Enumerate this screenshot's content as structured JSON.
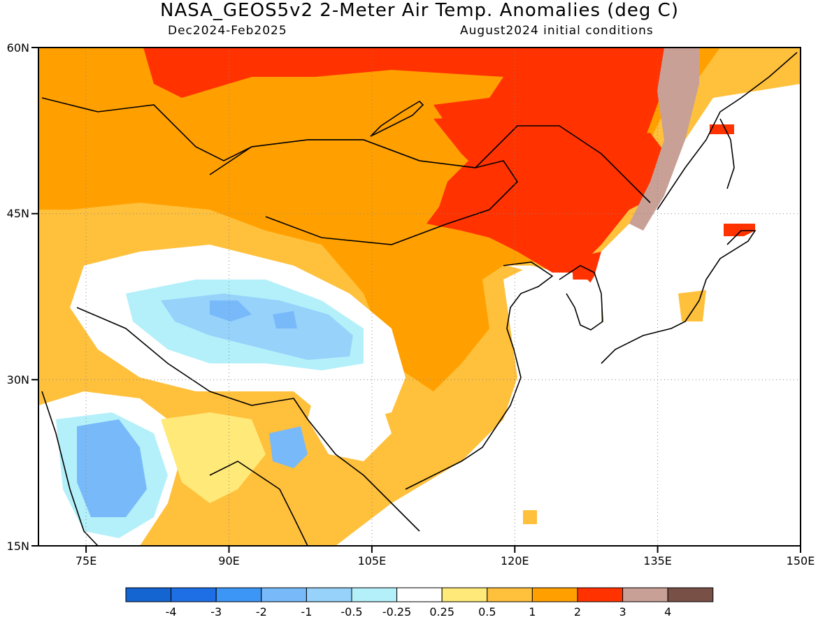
{
  "header": {
    "title": "NASA_GEOS5v2 2-Meter Air Temp. Anomalies (deg C)",
    "subtitle_left": "Dec2024-Feb2025",
    "subtitle_right": "August2024 initial conditions"
  },
  "map": {
    "projection": "cylindrical-equidistant",
    "lon_range": [
      70,
      150
    ],
    "lat_range": [
      15,
      60
    ],
    "lat_labels": [
      "60N",
      "45N",
      "30N",
      "15N"
    ],
    "lon_labels": [
      "75E",
      "90E",
      "105E",
      "120E",
      "135E",
      "150E"
    ],
    "gridlines": "dotted"
  },
  "colorbar": {
    "labels": [
      "-4",
      "-3",
      "-2",
      "-1",
      "-0.5",
      "-0.25",
      "0.25",
      "0.5",
      "1",
      "2",
      "3",
      "4"
    ],
    "colors": [
      "#1464d2",
      "#1e6ee6",
      "#3c96f5",
      "#78b9fa",
      "#96d2fa",
      "#b4f0fa",
      "#ffffff",
      "#ffe978",
      "#ffc03c",
      "#ffa000",
      "#ff3200",
      "#c8a096",
      "#785046"
    ]
  },
  "regions": [
    {
      "name": "northern-warm-band",
      "color": "#ffa000"
    },
    {
      "name": "siberia-hot-region",
      "color": "#ff3200"
    },
    {
      "name": "manchuria-hot-region",
      "color": "#ff3200"
    },
    {
      "name": "amur-extreme-patch",
      "color": "#c8a096"
    },
    {
      "name": "tibet-cool-region",
      "color": "#96d2fa"
    },
    {
      "name": "india-cool-region",
      "color": "#78b9fa"
    },
    {
      "name": "southeast-asia-mild-region",
      "color": "#ffc03c"
    }
  ]
}
